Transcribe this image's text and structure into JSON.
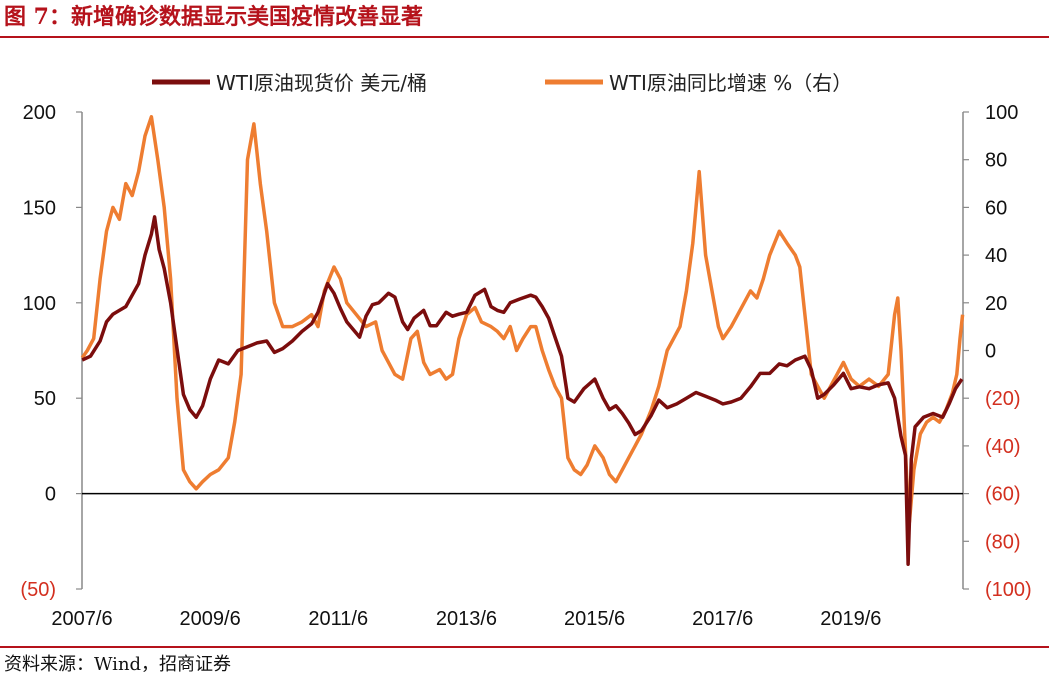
{
  "figure": {
    "title": "图 7：新增确诊数据显示美国疫情改善显著",
    "source": "资料来源：Wind，招商证券"
  },
  "chart_data": {
    "type": "line",
    "x_ticks": [
      "2007/6",
      "2009/6",
      "2011/6",
      "2013/6",
      "2015/6",
      "2017/6",
      "2019/6"
    ],
    "y_left": {
      "ticks": [
        "200",
        "150",
        "100",
        "50",
        "0",
        "(50)"
      ],
      "values": [
        200,
        150,
        100,
        50,
        0,
        -50
      ],
      "range": [
        -50,
        200
      ]
    },
    "y_right": {
      "ticks": [
        "100",
        "80",
        "60",
        "40",
        "20",
        "0",
        "(20)",
        "(40)",
        "(60)",
        "(80)",
        "(100)"
      ],
      "values": [
        100,
        80,
        60,
        40,
        20,
        0,
        -20,
        -40,
        -60,
        -80,
        -100
      ],
      "range": [
        -100,
        100
      ]
    },
    "x_range": [
      2007.417,
      2021.167
    ],
    "legend_position": "top",
    "series": [
      {
        "name": "WTI原油现货价 美元/桶",
        "axis": "left",
        "color": "#7B0D0D",
        "points": [
          [
            2007.42,
            70
          ],
          [
            2007.55,
            72
          ],
          [
            2007.7,
            80
          ],
          [
            2007.8,
            90
          ],
          [
            2007.9,
            94
          ],
          [
            2008.0,
            96
          ],
          [
            2008.1,
            98
          ],
          [
            2008.2,
            104
          ],
          [
            2008.3,
            110
          ],
          [
            2008.4,
            125
          ],
          [
            2008.5,
            136
          ],
          [
            2008.55,
            145
          ],
          [
            2008.62,
            128
          ],
          [
            2008.7,
            118
          ],
          [
            2008.8,
            100
          ],
          [
            2008.9,
            76
          ],
          [
            2009.0,
            52
          ],
          [
            2009.1,
            44
          ],
          [
            2009.2,
            40
          ],
          [
            2009.3,
            46
          ],
          [
            2009.42,
            60
          ],
          [
            2009.55,
            70
          ],
          [
            2009.7,
            68
          ],
          [
            2009.85,
            75
          ],
          [
            2010.0,
            77
          ],
          [
            2010.15,
            79
          ],
          [
            2010.3,
            80
          ],
          [
            2010.42,
            74
          ],
          [
            2010.55,
            76
          ],
          [
            2010.7,
            80
          ],
          [
            2010.85,
            85
          ],
          [
            2011.0,
            89
          ],
          [
            2011.1,
            95
          ],
          [
            2011.25,
            110
          ],
          [
            2011.35,
            105
          ],
          [
            2011.45,
            97
          ],
          [
            2011.55,
            90
          ],
          [
            2011.65,
            86
          ],
          [
            2011.75,
            82
          ],
          [
            2011.85,
            93
          ],
          [
            2011.95,
            99
          ],
          [
            2012.05,
            100
          ],
          [
            2012.2,
            105
          ],
          [
            2012.3,
            103
          ],
          [
            2012.42,
            90
          ],
          [
            2012.5,
            86
          ],
          [
            2012.6,
            92
          ],
          [
            2012.75,
            96
          ],
          [
            2012.85,
            88
          ],
          [
            2012.95,
            88
          ],
          [
            2013.1,
            95
          ],
          [
            2013.2,
            93
          ],
          [
            2013.3,
            94
          ],
          [
            2013.42,
            95
          ],
          [
            2013.55,
            104
          ],
          [
            2013.7,
            107
          ],
          [
            2013.8,
            98
          ],
          [
            2013.9,
            96
          ],
          [
            2014.0,
            95
          ],
          [
            2014.1,
            100
          ],
          [
            2014.25,
            102
          ],
          [
            2014.42,
            104
          ],
          [
            2014.5,
            103
          ],
          [
            2014.6,
            98
          ],
          [
            2014.7,
            92
          ],
          [
            2014.8,
            82
          ],
          [
            2014.9,
            72
          ],
          [
            2015.0,
            50
          ],
          [
            2015.1,
            48
          ],
          [
            2015.25,
            55
          ],
          [
            2015.42,
            60
          ],
          [
            2015.55,
            50
          ],
          [
            2015.65,
            44
          ],
          [
            2015.75,
            46
          ],
          [
            2015.85,
            42
          ],
          [
            2015.95,
            37
          ],
          [
            2016.05,
            31
          ],
          [
            2016.15,
            33
          ],
          [
            2016.3,
            41
          ],
          [
            2016.42,
            49
          ],
          [
            2016.55,
            45
          ],
          [
            2016.7,
            47
          ],
          [
            2016.85,
            50
          ],
          [
            2017.0,
            53
          ],
          [
            2017.15,
            51
          ],
          [
            2017.3,
            49
          ],
          [
            2017.42,
            47
          ],
          [
            2017.55,
            48
          ],
          [
            2017.7,
            50
          ],
          [
            2017.85,
            56
          ],
          [
            2018.0,
            63
          ],
          [
            2018.15,
            63
          ],
          [
            2018.3,
            68
          ],
          [
            2018.42,
            67
          ],
          [
            2018.55,
            70
          ],
          [
            2018.7,
            72
          ],
          [
            2018.8,
            65
          ],
          [
            2018.9,
            50
          ],
          [
            2019.0,
            52
          ],
          [
            2019.15,
            57
          ],
          [
            2019.3,
            63
          ],
          [
            2019.42,
            55
          ],
          [
            2019.55,
            56
          ],
          [
            2019.7,
            55
          ],
          [
            2019.85,
            57
          ],
          [
            2020.0,
            58
          ],
          [
            2020.1,
            50
          ],
          [
            2020.2,
            30
          ],
          [
            2020.27,
            20
          ],
          [
            2020.31,
            -37
          ],
          [
            2020.36,
            18
          ],
          [
            2020.42,
            35
          ],
          [
            2020.55,
            40
          ],
          [
            2020.7,
            42
          ],
          [
            2020.85,
            40
          ],
          [
            2020.95,
            47
          ],
          [
            2021.05,
            55
          ],
          [
            2021.15,
            60
          ]
        ]
      },
      {
        "name": "WTI原油同比增速 %（右）",
        "axis": "right",
        "color": "#EE7D31",
        "points": [
          [
            2007.42,
            -3
          ],
          [
            2007.5,
            0
          ],
          [
            2007.6,
            5
          ],
          [
            2007.7,
            30
          ],
          [
            2007.8,
            50
          ],
          [
            2007.9,
            60
          ],
          [
            2008.0,
            55
          ],
          [
            2008.1,
            70
          ],
          [
            2008.2,
            65
          ],
          [
            2008.3,
            75
          ],
          [
            2008.4,
            90
          ],
          [
            2008.5,
            98
          ],
          [
            2008.6,
            80
          ],
          [
            2008.7,
            60
          ],
          [
            2008.8,
            30
          ],
          [
            2008.9,
            -20
          ],
          [
            2009.0,
            -50
          ],
          [
            2009.1,
            -55
          ],
          [
            2009.2,
            -58
          ],
          [
            2009.3,
            -55
          ],
          [
            2009.42,
            -52
          ],
          [
            2009.55,
            -50
          ],
          [
            2009.7,
            -45
          ],
          [
            2009.8,
            -30
          ],
          [
            2009.9,
            -10
          ],
          [
            2010.0,
            80
          ],
          [
            2010.1,
            95
          ],
          [
            2010.2,
            70
          ],
          [
            2010.3,
            50
          ],
          [
            2010.42,
            20
          ],
          [
            2010.55,
            10
          ],
          [
            2010.7,
            10
          ],
          [
            2010.85,
            12
          ],
          [
            2011.0,
            15
          ],
          [
            2011.1,
            10
          ],
          [
            2011.2,
            25
          ],
          [
            2011.35,
            35
          ],
          [
            2011.45,
            30
          ],
          [
            2011.55,
            20
          ],
          [
            2011.7,
            15
          ],
          [
            2011.85,
            10
          ],
          [
            2012.0,
            12
          ],
          [
            2012.1,
            0
          ],
          [
            2012.2,
            -5
          ],
          [
            2012.3,
            -10
          ],
          [
            2012.42,
            -12
          ],
          [
            2012.55,
            5
          ],
          [
            2012.65,
            8
          ],
          [
            2012.75,
            -5
          ],
          [
            2012.85,
            -10
          ],
          [
            2013.0,
            -8
          ],
          [
            2013.1,
            -12
          ],
          [
            2013.2,
            -10
          ],
          [
            2013.3,
            5
          ],
          [
            2013.42,
            15
          ],
          [
            2013.55,
            18
          ],
          [
            2013.65,
            12
          ],
          [
            2013.8,
            10
          ],
          [
            2013.9,
            8
          ],
          [
            2014.0,
            5
          ],
          [
            2014.1,
            10
          ],
          [
            2014.2,
            0
          ],
          [
            2014.3,
            5
          ],
          [
            2014.42,
            10
          ],
          [
            2014.5,
            10
          ],
          [
            2014.6,
            0
          ],
          [
            2014.7,
            -8
          ],
          [
            2014.8,
            -15
          ],
          [
            2014.9,
            -20
          ],
          [
            2015.0,
            -45
          ],
          [
            2015.1,
            -50
          ],
          [
            2015.2,
            -52
          ],
          [
            2015.3,
            -48
          ],
          [
            2015.42,
            -40
          ],
          [
            2015.55,
            -45
          ],
          [
            2015.65,
            -52
          ],
          [
            2015.75,
            -55
          ],
          [
            2015.85,
            -50
          ],
          [
            2015.95,
            -45
          ],
          [
            2016.05,
            -40
          ],
          [
            2016.15,
            -35
          ],
          [
            2016.3,
            -25
          ],
          [
            2016.42,
            -15
          ],
          [
            2016.55,
            0
          ],
          [
            2016.65,
            5
          ],
          [
            2016.75,
            10
          ],
          [
            2016.85,
            25
          ],
          [
            2016.95,
            45
          ],
          [
            2017.05,
            75
          ],
          [
            2017.15,
            40
          ],
          [
            2017.25,
            25
          ],
          [
            2017.35,
            10
          ],
          [
            2017.42,
            5
          ],
          [
            2017.55,
            10
          ],
          [
            2017.65,
            15
          ],
          [
            2017.75,
            20
          ],
          [
            2017.85,
            25
          ],
          [
            2017.95,
            22
          ],
          [
            2018.05,
            30
          ],
          [
            2018.15,
            40
          ],
          [
            2018.3,
            50
          ],
          [
            2018.42,
            45
          ],
          [
            2018.55,
            40
          ],
          [
            2018.62,
            35
          ],
          [
            2018.7,
            15
          ],
          [
            2018.8,
            -10
          ],
          [
            2018.9,
            -15
          ],
          [
            2019.0,
            -20
          ],
          [
            2019.1,
            -15
          ],
          [
            2019.2,
            -10
          ],
          [
            2019.3,
            -5
          ],
          [
            2019.42,
            -12
          ],
          [
            2019.55,
            -15
          ],
          [
            2019.7,
            -12
          ],
          [
            2019.85,
            -15
          ],
          [
            2020.0,
            -10
          ],
          [
            2020.1,
            15
          ],
          [
            2020.15,
            22
          ],
          [
            2020.2,
            0
          ],
          [
            2020.25,
            -30
          ],
          [
            2020.3,
            -60
          ],
          [
            2020.33,
            -72
          ],
          [
            2020.4,
            -50
          ],
          [
            2020.5,
            -35
          ],
          [
            2020.6,
            -30
          ],
          [
            2020.7,
            -28
          ],
          [
            2020.8,
            -30
          ],
          [
            2020.9,
            -25
          ],
          [
            2021.0,
            -18
          ],
          [
            2021.07,
            -10
          ],
          [
            2021.12,
            5
          ],
          [
            2021.16,
            15
          ]
        ]
      }
    ]
  }
}
